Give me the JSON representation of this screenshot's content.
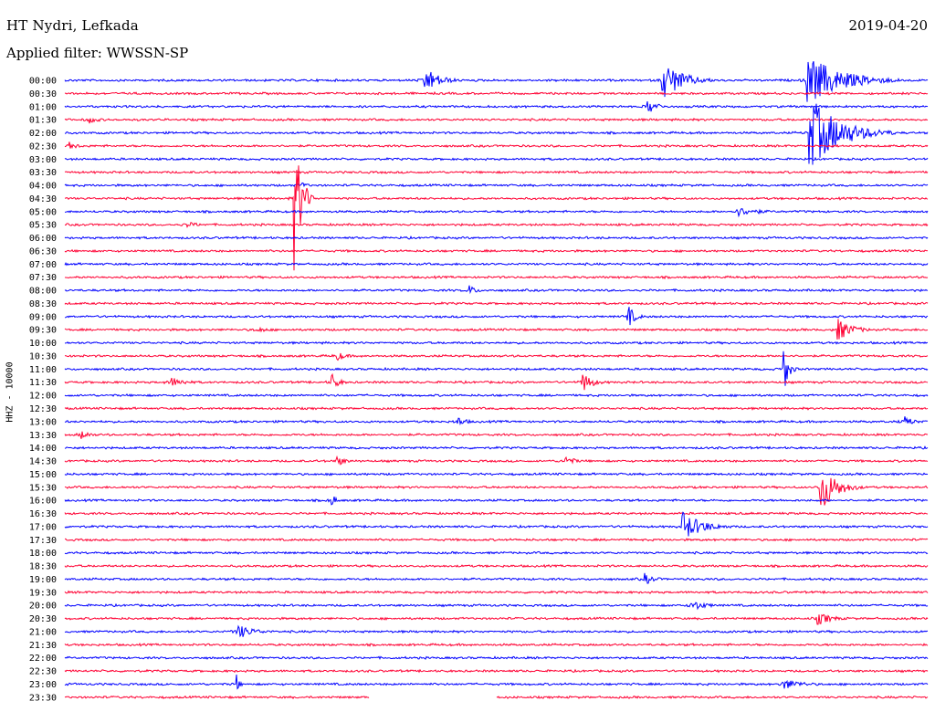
{
  "header": {
    "station": "HT Nydri, Lefkada",
    "date": "2019-04-20",
    "filter": "Applied filter: WWSSN-SP",
    "channel": "HHZ - 10000"
  },
  "colors": {
    "even_hour": "#0000ff",
    "half_hour": "#ff0033"
  },
  "chart_data": {
    "type": "line",
    "title": "HT Nydri, Lefkada",
    "subtitle": "Applied filter: WWSSN-SP",
    "ylabel": "HHZ - 10000",
    "date": "2019-04-20",
    "row_labels": [
      "00:00",
      "00:30",
      "01:00",
      "01:30",
      "02:00",
      "02:30",
      "03:00",
      "03:30",
      "04:00",
      "04:30",
      "05:00",
      "05:30",
      "06:00",
      "06:30",
      "07:00",
      "07:30",
      "08:00",
      "08:30",
      "09:00",
      "09:30",
      "10:00",
      "10:30",
      "11:00",
      "11:30",
      "12:00",
      "12:30",
      "13:00",
      "13:30",
      "14:00",
      "14:30",
      "15:00",
      "15:30",
      "16:00",
      "16:30",
      "17:00",
      "17:30",
      "18:00",
      "18:30",
      "19:00",
      "19:30",
      "20:00",
      "20:30",
      "21:00",
      "21:30",
      "22:00",
      "22:30",
      "23:00",
      "23:30"
    ],
    "x_range_minutes_per_row": [
      0,
      30
    ],
    "events": [
      {
        "row": 0,
        "at_minute": 12.5,
        "amplitude": 15,
        "duration_min": 1.5
      },
      {
        "row": 0,
        "at_minute": 20.8,
        "amplitude": 22,
        "duration_min": 2.0
      },
      {
        "row": 0,
        "at_minute": 25.8,
        "amplitude": 28,
        "duration_min": 3.5
      },
      {
        "row": 2,
        "at_minute": 20.3,
        "amplitude": 8,
        "duration_min": 1.0
      },
      {
        "row": 3,
        "at_minute": 0.9,
        "amplitude": 4,
        "duration_min": 1.0
      },
      {
        "row": 4,
        "at_minute": 25.9,
        "amplitude": 40,
        "duration_min": 3.0
      },
      {
        "row": 5,
        "at_minute": 0.2,
        "amplitude": 4,
        "duration_min": 1.0
      },
      {
        "row": 8,
        "at_minute": 8.3,
        "amplitude": 3,
        "duration_min": 0.6
      },
      {
        "row": 9,
        "at_minute": 8.0,
        "amplitude": 70,
        "duration_min": 0.7
      },
      {
        "row": 10,
        "at_minute": 23.4,
        "amplitude": 5,
        "duration_min": 2.5
      },
      {
        "row": 11,
        "at_minute": 4.3,
        "amplitude": 3,
        "duration_min": 1.5
      },
      {
        "row": 16,
        "at_minute": 14.1,
        "amplitude": 5,
        "duration_min": 0.8
      },
      {
        "row": 18,
        "at_minute": 19.6,
        "amplitude": 12,
        "duration_min": 0.7
      },
      {
        "row": 19,
        "at_minute": 6.7,
        "amplitude": 3,
        "duration_min": 1.5
      },
      {
        "row": 19,
        "at_minute": 26.9,
        "amplitude": 12,
        "duration_min": 1.5
      },
      {
        "row": 21,
        "at_minute": 9.5,
        "amplitude": 5,
        "duration_min": 1.0
      },
      {
        "row": 22,
        "at_minute": 25.0,
        "amplitude": 26,
        "duration_min": 0.5
      },
      {
        "row": 23,
        "at_minute": 3.7,
        "amplitude": 6,
        "duration_min": 1.5
      },
      {
        "row": 23,
        "at_minute": 9.3,
        "amplitude": 10,
        "duration_min": 0.7
      },
      {
        "row": 23,
        "at_minute": 18.0,
        "amplitude": 12,
        "duration_min": 1.0
      },
      {
        "row": 26,
        "at_minute": 13.7,
        "amplitude": 5,
        "duration_min": 1.0
      },
      {
        "row": 26,
        "at_minute": 29.2,
        "amplitude": 6,
        "duration_min": 1.0
      },
      {
        "row": 27,
        "at_minute": 0.6,
        "amplitude": 5,
        "duration_min": 1.0
      },
      {
        "row": 29,
        "at_minute": 9.5,
        "amplitude": 5,
        "duration_min": 1.0
      },
      {
        "row": 29,
        "at_minute": 17.4,
        "amplitude": 6,
        "duration_min": 1.0
      },
      {
        "row": 31,
        "at_minute": 26.3,
        "amplitude": 28,
        "duration_min": 1.5
      },
      {
        "row": 32,
        "at_minute": 9.3,
        "amplitude": 7,
        "duration_min": 0.4
      },
      {
        "row": 34,
        "at_minute": 21.5,
        "amplitude": 16,
        "duration_min": 2.0
      },
      {
        "row": 38,
        "at_minute": 20.2,
        "amplitude": 6,
        "duration_min": 1.0
      },
      {
        "row": 40,
        "at_minute": 21.8,
        "amplitude": 6,
        "duration_min": 1.5
      },
      {
        "row": 41,
        "at_minute": 26.2,
        "amplitude": 7,
        "duration_min": 1.5
      },
      {
        "row": 42,
        "at_minute": 6.0,
        "amplitude": 8,
        "duration_min": 1.8
      },
      {
        "row": 46,
        "at_minute": 6.0,
        "amplitude": 8,
        "duration_min": 0.3
      },
      {
        "row": 46,
        "at_minute": 25.0,
        "amplitude": 6,
        "duration_min": 2.0
      }
    ],
    "data_gap": {
      "row": 47,
      "from_minute": 10.6,
      "to_minute": 15.0
    }
  }
}
